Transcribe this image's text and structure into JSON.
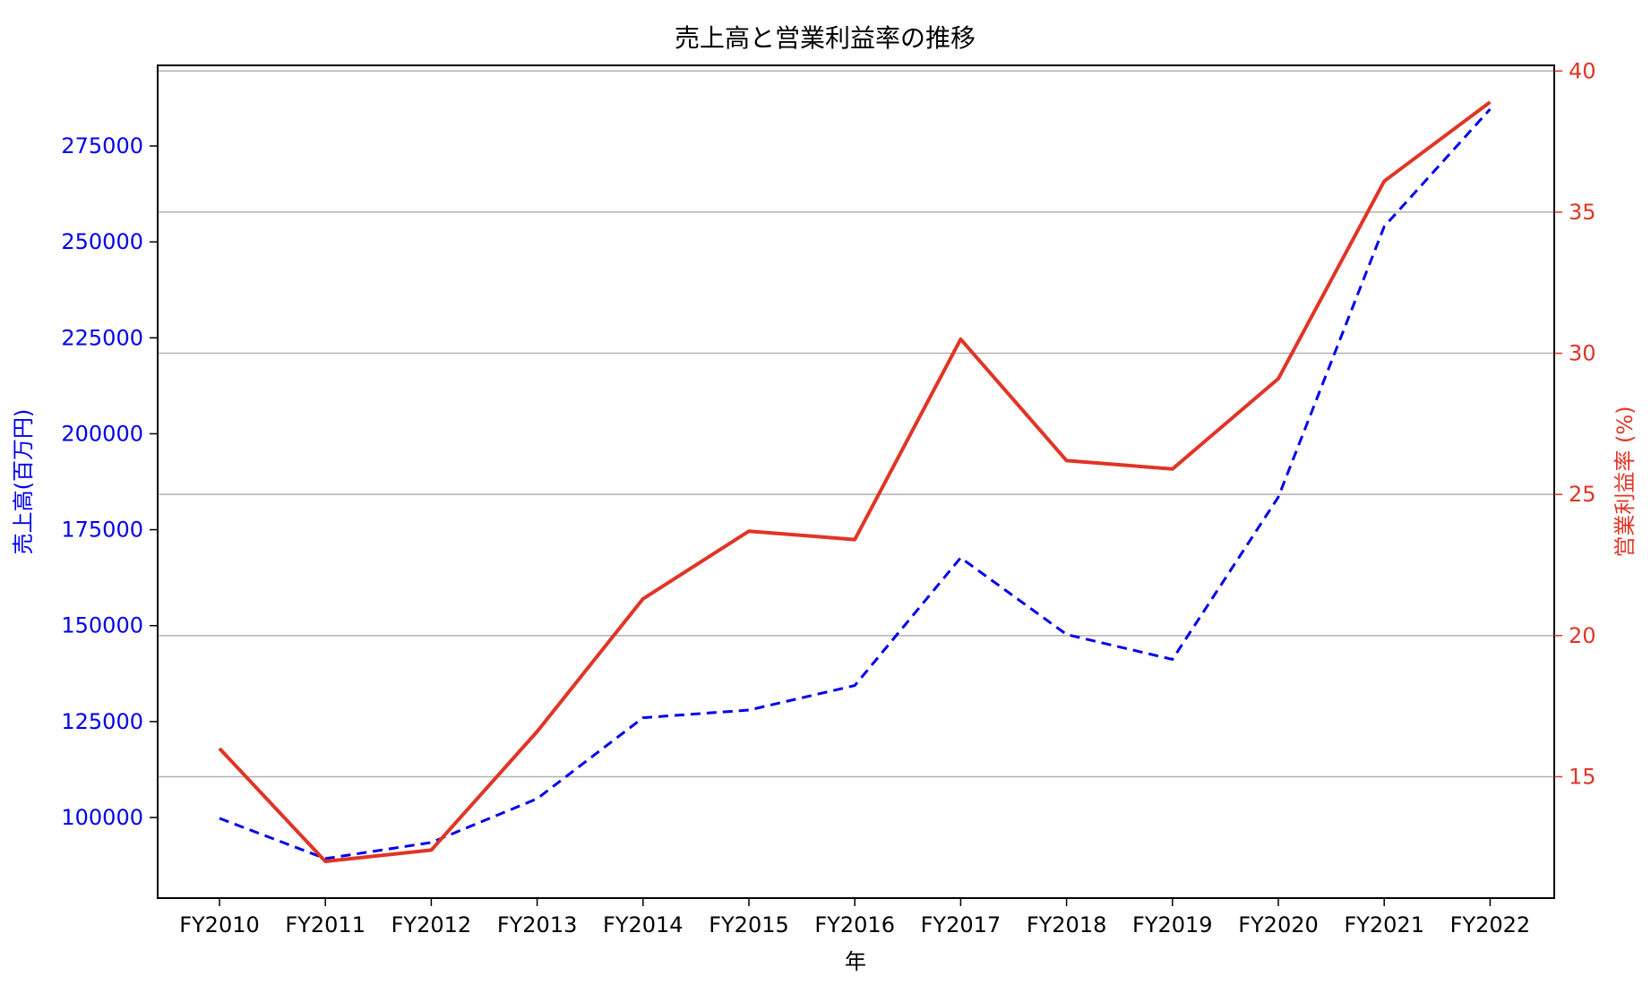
{
  "chart_data": {
    "type": "line",
    "title": "売上高と営業利益率の推移",
    "xlabel": "年",
    "ylabel_left": "売上高(百万円)",
    "ylabel_right": "営業利益率 (%)",
    "categories": [
      "FY2010",
      "FY2011",
      "FY2012",
      "FY2013",
      "FY2014",
      "FY2015",
      "FY2016",
      "FY2017",
      "FY2018",
      "FY2019",
      "FY2020",
      "FY2021",
      "FY2022"
    ],
    "ylim_left": [
      79000,
      296000
    ],
    "yticks_left": [
      100000,
      125000,
      150000,
      175000,
      200000,
      225000,
      250000,
      275000
    ],
    "ylim_right": [
      10.7,
      40.2
    ],
    "yticks_right": [
      15,
      20,
      25,
      30,
      35,
      40
    ],
    "grid": "horizontal lines at right-axis ticks",
    "series": [
      {
        "axis": "left",
        "color": "#0000ee",
        "style": "dashed",
        "values": [
          99800,
          89300,
          93500,
          104900,
          126000,
          128000,
          134400,
          167700,
          147700,
          141200,
          183500,
          254000,
          284600
        ]
      },
      {
        "axis": "right",
        "color": "#e03526",
        "style": "solid",
        "values": [
          16.0,
          12.0,
          12.4,
          16.6,
          21.3,
          23.7,
          23.4,
          30.5,
          26.2,
          25.9,
          29.1,
          36.1,
          38.9
        ]
      }
    ],
    "colors": {
      "left_axis": "#0000ee",
      "right_axis": "#e03526",
      "grid": "#b0b0b0",
      "frame": "#000000"
    }
  }
}
